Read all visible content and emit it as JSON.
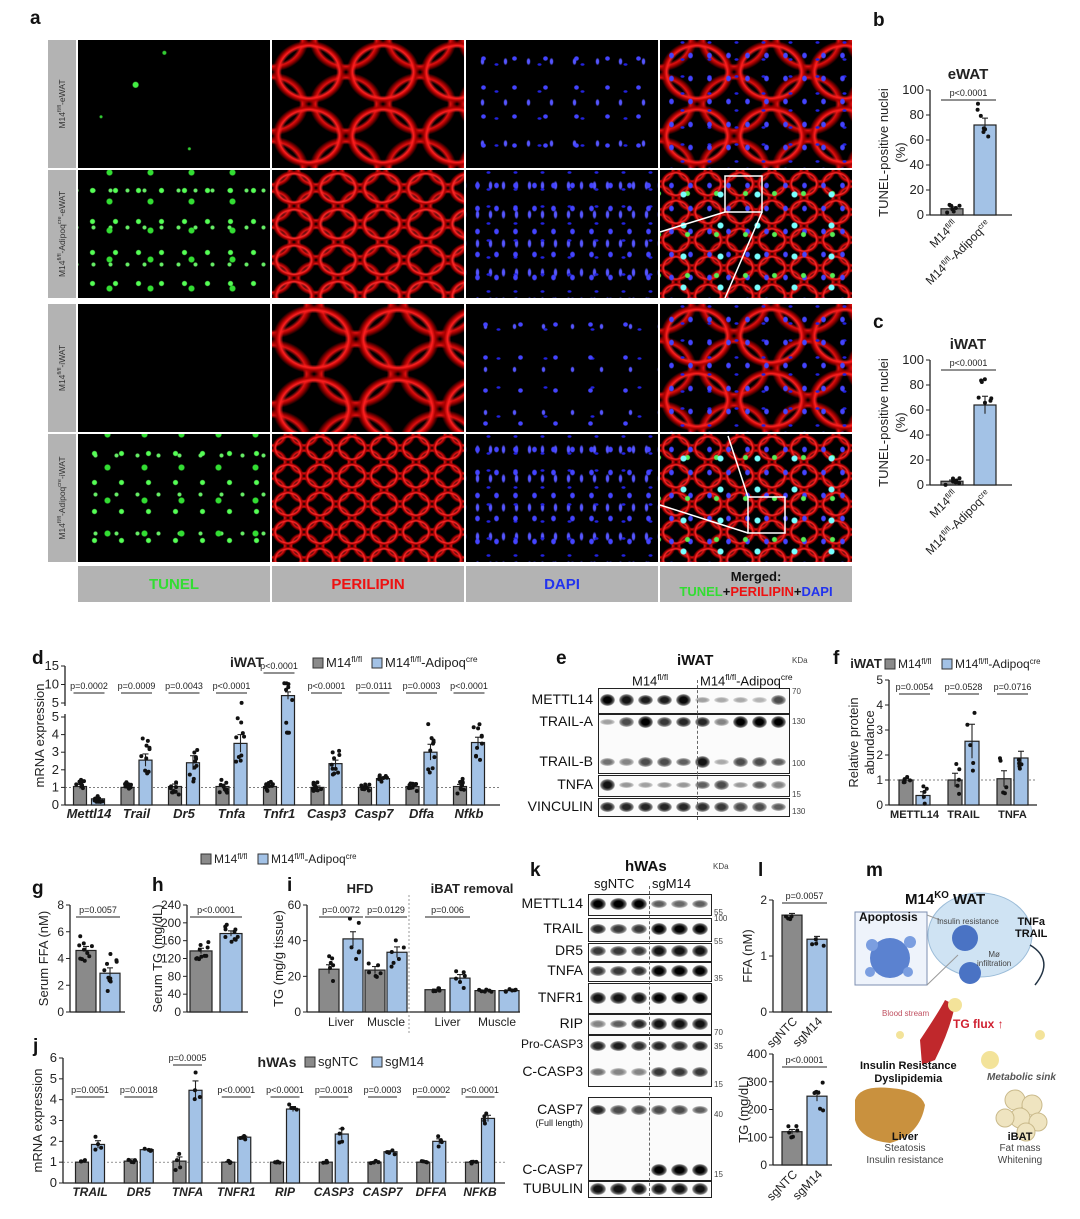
{
  "panel_labels": [
    "a",
    "b",
    "c",
    "d",
    "e",
    "f",
    "g",
    "h",
    "i",
    "j",
    "k",
    "l",
    "m"
  ],
  "panel_a": {
    "row_labels": [
      "M14{fl/fl}-eWAT",
      "M14{fl/fl}-Adipoq{cre}-eWAT",
      "M14{fl/fl}-iWAT",
      "M14{fl/fl}-Adipoq{cre}-iWAT"
    ],
    "channels": {
      "tunel": "TUNEL",
      "perilipin": "PERILIPIN",
      "dapi": "DAPI",
      "merged_title": "Merged:",
      "plus": "+"
    },
    "colors": {
      "tunel": "#33dd33",
      "perilipin": "#ee1111",
      "dapi": "#2233ee"
    }
  },
  "legends": {
    "mouse": [
      "M14{fl/fl}",
      "M14{fl/fl}-Adipoq{cre}"
    ],
    "human": [
      "sgNTC",
      "sgM14"
    ],
    "iwat": "iWAT",
    "hwas": "hWAs"
  },
  "colors": {
    "control": "#8a8a8a",
    "knockout": "#a3c2e6"
  },
  "chart_data": [
    {
      "id": "b",
      "type": "bar",
      "title": "eWAT",
      "ylabel": "TUNEL-positive nuclei",
      "ylabel2": "(%)",
      "ylim": [
        0,
        100
      ],
      "yticks": [
        0,
        20,
        40,
        60,
        80,
        100
      ],
      "categories": [
        "M14{fl/fl}",
        "M14{fl/fl}-Adipoq{cre}"
      ],
      "values": [
        5,
        72
      ],
      "sem": [
        1.5,
        5.5
      ],
      "n": 7,
      "pvalues": [
        "p<0.0001"
      ]
    },
    {
      "id": "c",
      "type": "bar",
      "title": "iWAT",
      "ylabel": "TUNEL-positive nuclei",
      "ylabel2": "(%)",
      "ylim": [
        0,
        100
      ],
      "yticks": [
        0,
        20,
        40,
        60,
        80,
        100
      ],
      "categories": [
        "M14{fl/fl}",
        "M14{fl/fl}-Adipoq{cre}"
      ],
      "values": [
        3,
        64
      ],
      "sem": [
        1,
        7
      ],
      "n": 7,
      "pvalues": [
        "p<0.0001"
      ]
    },
    {
      "id": "d",
      "type": "bar",
      "title": "iWAT",
      "ylabel": "mRNA expression",
      "ylim": [
        0,
        15
      ],
      "yticks_lower": [
        0,
        1,
        2,
        3,
        4,
        5
      ],
      "yticks_upper": [
        5,
        10,
        15
      ],
      "refline": 1,
      "categories": [
        "Mettl14",
        "Trail",
        "Dr5",
        "Tnfa",
        "Tnfr1",
        "Casp3",
        "Casp7",
        "Dffa",
        "Nfkb"
      ],
      "series": [
        {
          "name": "M14{fl/fl}",
          "values": [
            1.05,
            1.0,
            1.05,
            1.05,
            1.05,
            1.0,
            1.0,
            1.05,
            1.05
          ],
          "sem": [
            0.12,
            0.08,
            0.14,
            0.1,
            0.08,
            0.08,
            0.08,
            0.08,
            0.12
          ]
        },
        {
          "name": "M14{fl/fl}-Adipoq{cre}",
          "values": [
            0.35,
            2.55,
            2.4,
            3.5,
            7.0,
            2.35,
            1.5,
            3.0,
            3.55
          ],
          "sem": [
            0.05,
            0.35,
            0.4,
            0.5,
            1.0,
            0.2,
            0.05,
            0.45,
            0.3
          ]
        }
      ],
      "n": 10,
      "pvalues": [
        "p=0.0002",
        "p=0.0009",
        "p=0.0043",
        "p<0.0001",
        "p<0.0001",
        "p<0.0001",
        "p=0.0111",
        "p=0.0003",
        "p<0.0001"
      ]
    },
    {
      "id": "f",
      "type": "bar",
      "ylabel": "Relative protein",
      "ylabel2": "abundance",
      "ylim": [
        0,
        5
      ],
      "yticks": [
        0,
        1,
        2,
        3,
        4,
        5
      ],
      "refline": 1,
      "categories": [
        "METTL14",
        "TRAIL",
        "TNFA"
      ],
      "series": [
        {
          "name": "M14{fl/fl}",
          "values": [
            1.0,
            1.0,
            1.05
          ],
          "sem": [
            0.06,
            0.27,
            0.32
          ]
        },
        {
          "name": "M14{fl/fl}-Adipoq{cre}",
          "values": [
            0.38,
            2.55,
            1.88
          ],
          "sem": [
            0.15,
            0.68,
            0.27
          ]
        }
      ],
      "n": 5,
      "pvalues": [
        "p=0.0054",
        "p=0.0528",
        "p=0.0716"
      ]
    },
    {
      "id": "g",
      "type": "bar",
      "ylabel": "Serum FFA (nM)",
      "ylim": [
        0,
        8
      ],
      "yticks": [
        0,
        2,
        4,
        6,
        8
      ],
      "categories": [
        "M14{fl/fl}",
        "M14{fl/fl}-Adipoq{cre}"
      ],
      "values": [
        4.6,
        2.9
      ],
      "sem": [
        0.3,
        0.4
      ],
      "n": 10,
      "pvalues": [
        "p=0.0057"
      ]
    },
    {
      "id": "h",
      "type": "bar",
      "ylabel": "Serum TG (mg/dL)",
      "ylim": [
        0,
        240
      ],
      "yticks": [
        0,
        40,
        80,
        120,
        160,
        200,
        240
      ],
      "categories": [
        "M14{fl/fl}",
        "M14{fl/fl}-Adipoq{cre}"
      ],
      "values": [
        137,
        176
      ],
      "sem": [
        6,
        6
      ],
      "n": 10,
      "pvalues": [
        "p<0.0001"
      ]
    },
    {
      "id": "i",
      "type": "bar",
      "ylabel": "TG (mg/g tissue)",
      "ylim": [
        0,
        60
      ],
      "yticks": [
        0,
        20,
        40,
        60
      ],
      "headers": [
        "HFD",
        "iBAT removal"
      ],
      "categories": [
        "Liver",
        "Muscle",
        "Liver",
        "Muscle"
      ],
      "series": [
        {
          "name": "M14{fl/fl}",
          "values": [
            24,
            23.5,
            12.5,
            12
          ],
          "sem": [
            2.5,
            2,
            0.3,
            0.3
          ]
        },
        {
          "name": "M14{fl/fl}-Adipoq{cre}",
          "values": [
            41,
            33.5,
            19,
            12
          ],
          "sem": [
            4,
            3,
            2,
            0.3
          ]
        }
      ],
      "n": 6,
      "pvalues": [
        "p=0.0072",
        "p=0.0129",
        "p=0.006",
        ""
      ]
    },
    {
      "id": "j",
      "type": "bar",
      "title": "hWAs",
      "ylabel": "mRNA expression",
      "ylim": [
        0,
        6
      ],
      "yticks": [
        0,
        1,
        2,
        3,
        4,
        5,
        6
      ],
      "refline": 1,
      "categories": [
        "TRAIL",
        "DR5",
        "TNFA",
        "TNFR1",
        "RIP",
        "CASP3",
        "CASP7",
        "DFFA",
        "NFKB"
      ],
      "series": [
        {
          "name": "sgNTC",
          "values": [
            1.0,
            1.05,
            1.05,
            1.0,
            1.0,
            1.0,
            1.0,
            1.0,
            1.0
          ],
          "sem": [
            0.05,
            0.1,
            0.2,
            0.03,
            0.02,
            0.03,
            0.03,
            0.03,
            0.03
          ]
        },
        {
          "name": "sgM14",
          "values": [
            1.85,
            1.6,
            4.45,
            2.2,
            3.55,
            2.35,
            1.5,
            2.0,
            3.1
          ],
          "sem": [
            0.18,
            0.03,
            0.45,
            0.05,
            0.12,
            0.25,
            0.05,
            0.12,
            0.15
          ]
        }
      ],
      "n": 4,
      "pvalues": [
        "p=0.0051",
        "p=0.0018",
        "p=0.0005",
        "p<0.0001",
        "p<0.0001",
        "p=0.0018",
        "p=0.0003",
        "p=0.0002",
        "p<0.0001"
      ]
    },
    {
      "id": "l1",
      "type": "bar",
      "ylabel": "FFA (nM)",
      "ylim": [
        0,
        2
      ],
      "yticks": [
        0,
        1,
        2
      ],
      "categories": [
        "sgNTC",
        "sgM14"
      ],
      "values": [
        1.73,
        1.3
      ],
      "sem": [
        0.03,
        0.05
      ],
      "n": 4,
      "pvalues": [
        "p=0.0057"
      ]
    },
    {
      "id": "l2",
      "type": "bar",
      "ylabel": "TG (mg/dL)",
      "ylim": [
        0,
        400
      ],
      "yticks": [
        0,
        100,
        200,
        300,
        400
      ],
      "categories": [
        "sgNTC",
        "sgM14"
      ],
      "values": [
        120,
        248
      ],
      "sem": [
        8,
        18
      ],
      "n": 6,
      "pvalues": [
        "p<0.0001"
      ]
    }
  ],
  "blot_e": {
    "title": "iWAT",
    "kda": "KDa",
    "groups": [
      "M14{fl/fl}",
      "M14{fl/fl}-Adipoq{cre}"
    ],
    "rows": [
      {
        "label": "METTL14",
        "bands": [
          1,
          0.9,
          0.85,
          0.85,
          0.95,
          0.15,
          0.1,
          0.1,
          0.05,
          0.6
        ]
      },
      {
        "label": "TRAIL-A",
        "bands": [
          0.15,
          0.6,
          1,
          0.7,
          0.8,
          0.8,
          0.3,
          1,
          1,
          1
        ]
      },
      {
        "label": "TRAIL-B",
        "bands": [
          0.4,
          0.3,
          0.6,
          0.6,
          0.5,
          0.9,
          0.1,
          0.6,
          0.6,
          0.5
        ]
      },
      {
        "label": "TNFA",
        "bands": [
          0.9,
          0.2,
          0.15,
          0.2,
          0.2,
          0.5,
          0.6,
          0.2,
          0.5,
          0.3
        ]
      },
      {
        "label": "VINCULIN",
        "bands": [
          0.8,
          0.8,
          0.8,
          0.8,
          0.8,
          0.75,
          0.7,
          0.6,
          0.6,
          0.5
        ]
      }
    ],
    "mw": [
      "70",
      "130",
      "100",
      "15",
      "130"
    ]
  },
  "blot_k": {
    "title": "hWAs",
    "kda": "KDa",
    "groups": [
      "sgNTC",
      "sgM14"
    ],
    "rows": [
      {
        "label": "METTL14",
        "bands": [
          1,
          1,
          1,
          0.5,
          0.45,
          0.5
        ]
      },
      {
        "label": "TRAIL",
        "bands": [
          0.8,
          0.7,
          0.7,
          1,
          1,
          1
        ]
      },
      {
        "label": "DR5",
        "bands": [
          0.7,
          0.7,
          0.7,
          0.9,
          0.9,
          0.9
        ]
      },
      {
        "label": "TNFA",
        "bands": [
          0.7,
          0.7,
          0.75,
          1,
          1,
          1
        ]
      },
      {
        "label": "TNFR1",
        "bands": [
          0.9,
          0.9,
          0.9,
          1,
          1,
          1
        ]
      },
      {
        "label": "RIP",
        "bands": [
          0.3,
          0.5,
          0.8,
          0.9,
          0.9,
          0.9
        ]
      },
      {
        "label": "Pro-CASP3",
        "bands": [
          0.8,
          0.85,
          0.75,
          0.8,
          0.75,
          0.8
        ]
      },
      {
        "label": "C-CASP3",
        "bands": [
          0.4,
          0.3,
          0.3,
          0.7,
          0.7,
          0.7
        ]
      },
      {
        "label": "CASP7",
        "sublabel": "(Full length)",
        "bands": [
          0.8,
          0.6,
          0.6,
          0.6,
          0.6,
          0.5
        ]
      },
      {
        "label": "C-CASP7",
        "bands": [
          0,
          0,
          0,
          1,
          1,
          1
        ]
      },
      {
        "label": "TUBULIN",
        "bands": [
          0.9,
          0.9,
          0.9,
          0.9,
          0.9,
          0.9
        ]
      }
    ],
    "mw": [
      "55",
      "100",
      "55",
      "35",
      "70",
      "35",
      "15",
      "40",
      "15"
    ]
  },
  "panel_m": {
    "title": "M14{KO} WAT",
    "apoptosis": "Apoptosis",
    "insulin_resistance": "Insulin resistance",
    "tnfa": "TNFa",
    "trail": "TRAIL",
    "mo": "Mø",
    "infiltration": "infiltration",
    "blood_stream": "Blood stream",
    "tg_flux": "TG flux ↑",
    "ir_line1": "Insulin Resistance",
    "ir_line2": "Dyslipidemia",
    "metabolic_sink": "Metabolic sink",
    "liver": "Liver",
    "liver_1": "Steatosis",
    "liver_2": "Insulin resistance",
    "ibat": "iBAT",
    "ibat_1": "Fat mass",
    "ibat_2": "Whitening"
  }
}
